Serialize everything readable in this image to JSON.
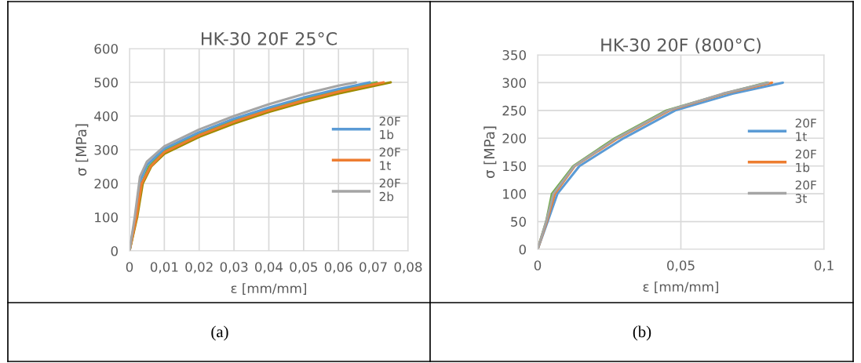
{
  "chart_data": [
    {
      "type": "line",
      "title": "HK-30 20F 25°C",
      "xlabel": "ε [mm/mm]",
      "ylabel": "σ [MPa]",
      "xlim": [
        0,
        0.08
      ],
      "xticks": [
        0,
        {
          "value": 0.01,
          "label": "0,01"
        },
        {
          "value": 0.02,
          "label": "0,02"
        },
        {
          "value": 0.03,
          "label": "0,03"
        },
        {
          "value": 0.04,
          "label": "0,04"
        },
        {
          "value": 0.05,
          "label": "0,05"
        },
        {
          "value": 0.06,
          "label": "0,06"
        },
        {
          "value": 0.07,
          "label": "0,07"
        },
        {
          "value": 0.08,
          "label": "0,08"
        }
      ],
      "ylim": [
        0,
        600
      ],
      "yticks": [
        0,
        100,
        200,
        300,
        400,
        500,
        600
      ],
      "grid": true,
      "legend": "right",
      "annotations": [
        "(a)"
      ],
      "series": [
        {
          "color": "#70ad47",
          "x": [
            0,
            0.002,
            0.0035,
            0.0055,
            0.01,
            0.02,
            0.03,
            0.04,
            0.05,
            0.06,
            0.071
          ],
          "values": [
            0,
            100,
            200,
            250,
            298,
            348,
            388,
            421,
            451,
            477,
            500
          ]
        },
        {
          "color": "#9e8b00",
          "x": [
            0,
            0.0022,
            0.0038,
            0.0062,
            0.01,
            0.02,
            0.03,
            0.04,
            0.05,
            0.06,
            0.075
          ],
          "values": [
            0,
            100,
            200,
            250,
            288,
            338,
            378,
            412,
            441,
            467,
            500
          ]
        },
        {
          "name": "20F 1b",
          "color": "#5b9bd5",
          "x": [
            0,
            0.0017,
            0.0032,
            0.005,
            0.01,
            0.02,
            0.03,
            0.04,
            0.05,
            0.06,
            0.069
          ],
          "values": [
            0,
            100,
            210,
            255,
            303,
            352,
            392,
            425,
            455,
            480,
            500
          ]
        },
        {
          "name": "20F 1t",
          "color": "#ed7d31",
          "x": [
            0,
            0.002,
            0.0035,
            0.006,
            0.01,
            0.02,
            0.03,
            0.04,
            0.05,
            0.06,
            0.073
          ],
          "values": [
            0,
            100,
            200,
            250,
            293,
            343,
            383,
            417,
            446,
            472,
            500
          ]
        },
        {
          "name": "20F 2b",
          "color": "#a5a5a5",
          "x": [
            0,
            0.0015,
            0.003,
            0.005,
            0.01,
            0.02,
            0.03,
            0.04,
            0.05,
            0.06,
            0.065
          ],
          "values": [
            0,
            100,
            220,
            265,
            310,
            360,
            400,
            435,
            465,
            490,
            500
          ]
        }
      ]
    },
    {
      "type": "line",
      "title": "HK-30 20F (800°C)",
      "xlabel": "ε [mm/mm]",
      "ylabel": "σ [MPa]",
      "xlim": [
        0,
        0.1
      ],
      "xticks": [
        0,
        {
          "value": 0.05,
          "label": "0,05"
        },
        {
          "value": 0.1,
          "label": "0,1"
        }
      ],
      "ylim": [
        0,
        350
      ],
      "yticks": [
        0,
        50,
        100,
        150,
        200,
        250,
        300,
        350
      ],
      "grid": true,
      "legend": "right",
      "annotations": [
        "(b)"
      ],
      "series": [
        {
          "color": "#70ad47",
          "x": [
            0,
            0.003,
            0.005,
            0.0125,
            0.027,
            0.045,
            0.065,
            0.08
          ],
          "values": [
            0,
            50,
            100,
            150,
            200,
            250,
            280,
            300
          ]
        },
        {
          "name": "20F 1t",
          "color": "#5b9bd5",
          "x": [
            0,
            0.0035,
            0.0069,
            0.0146,
            0.03,
            0.048,
            0.068,
            0.0856
          ],
          "values": [
            0,
            50,
            100,
            150,
            200,
            250,
            280,
            300
          ]
        },
        {
          "name": "20F 1b",
          "color": "#ed7d31",
          "x": [
            0,
            0.0032,
            0.006,
            0.013,
            0.028,
            0.046,
            0.065,
            0.0818
          ],
          "values": [
            0,
            50,
            100,
            150,
            200,
            250,
            280,
            300
          ]
        },
        {
          "name": "20F 3t",
          "color": "#a5a5a5",
          "x": [
            0,
            0.003,
            0.0055,
            0.0128,
            0.0275,
            0.0455,
            0.0645,
            0.0805
          ],
          "values": [
            0,
            50,
            100,
            150,
            200,
            250,
            280,
            300
          ]
        }
      ]
    }
  ]
}
